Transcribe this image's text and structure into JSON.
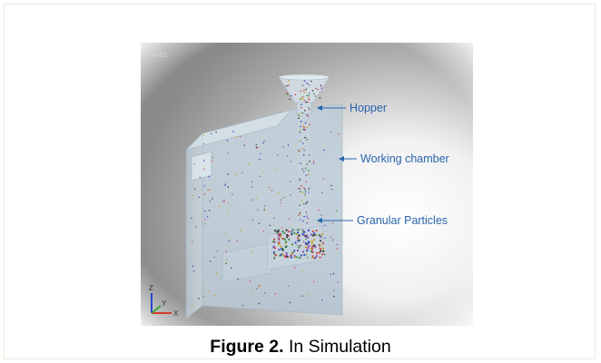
{
  "figure": {
    "callouts": [
      "Hopper",
      "Working chamber",
      "Granular Particles"
    ],
    "axes": {
      "z": "Z",
      "y": "Y",
      "x": "X"
    }
  },
  "caption": {
    "label": "Figure 2.",
    "text": "In Simulation"
  },
  "colors": {
    "callout_blue": "#2a64ad",
    "chamber_fill": "#b9cad6",
    "axis_x": "#d33a2c",
    "axis_y": "#3aa33a",
    "axis_z": "#2a45c9"
  }
}
